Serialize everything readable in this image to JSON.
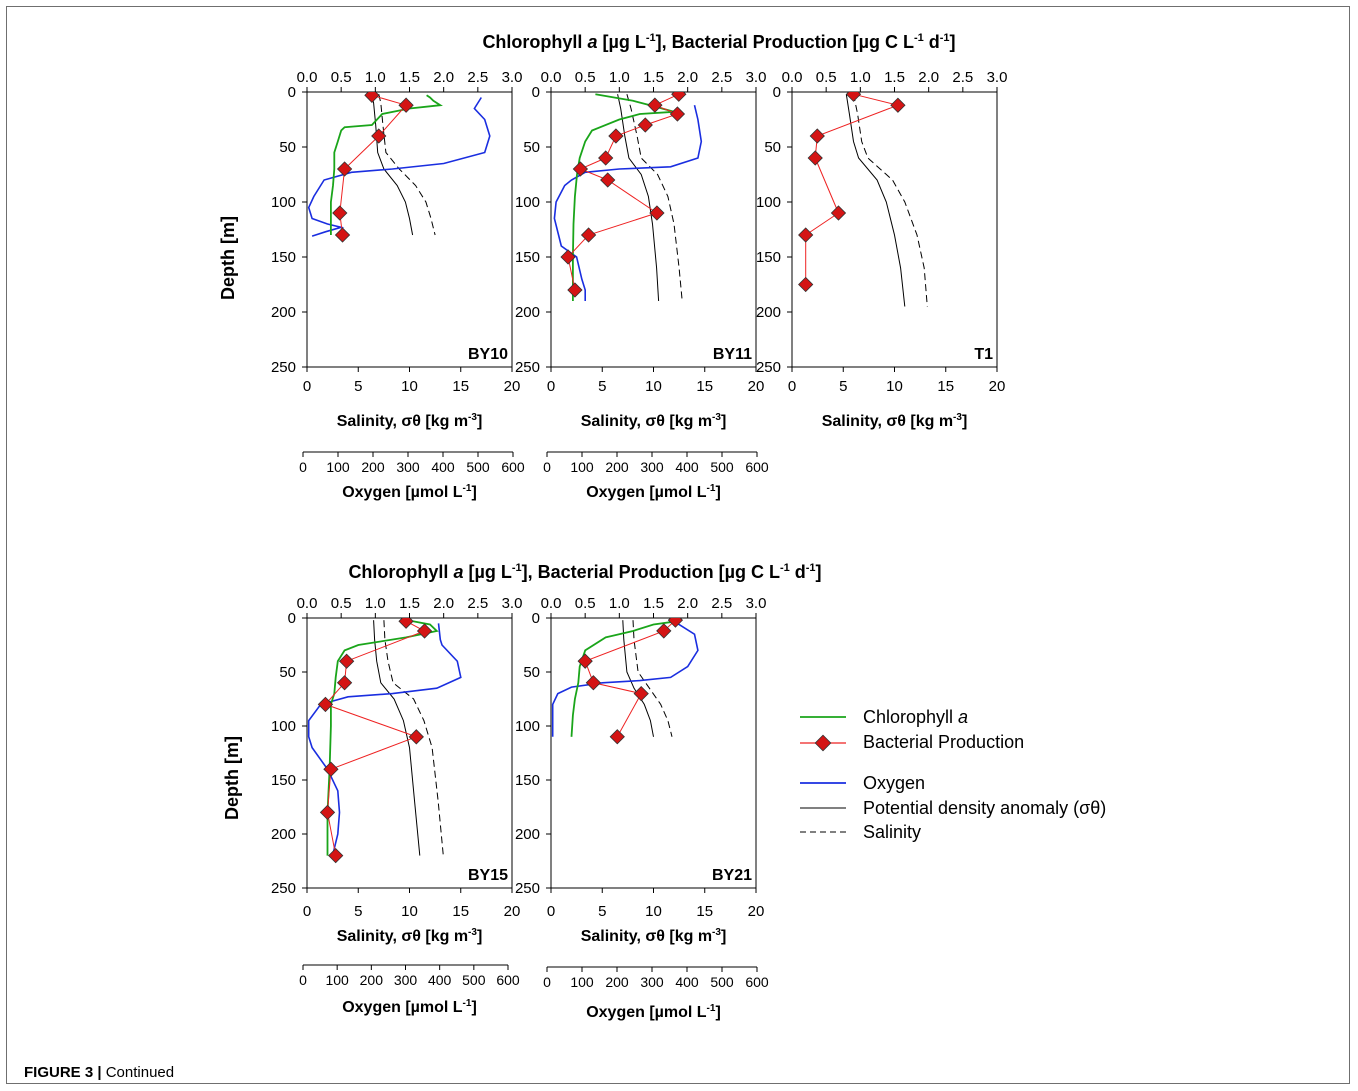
{
  "caption": {
    "label": "FIGURE 3 |",
    "text": "Continued"
  },
  "top_axis_title": {
    "part1": "Chlorophyll ",
    "part2": "a",
    "part3": " [µg L",
    "sup1": "-1",
    "part4": "], Bacterial Production [µg C L",
    "sup2": "-1",
    "part5": " d",
    "sup3": "-1",
    "part6": "]"
  },
  "labels": {
    "depth": "Depth [m]",
    "salinity": "Salinity, σθ [kg m",
    "salinity_sup": "-3",
    "salinity_end": "]",
    "oxygen": "Oxygen [µmol L",
    "oxygen_sup": "-1",
    "oxygen_end": "]"
  },
  "legend": {
    "chl": "Chlorophyll ",
    "chl_italic": "a",
    "bp": "Bacterial Production",
    "oxygen": "Oxygen",
    "density": "Potential density anomaly (σθ)",
    "salinity": "Salinity"
  },
  "colors": {
    "chlorophyll": "#1aa51a",
    "bacterial": "#ee2222",
    "marker": "#d41414",
    "oxygen": "#1a2ee0",
    "density": "#000000"
  },
  "chart_data": [
    {
      "type": "line",
      "station": "BY10",
      "top_axis": {
        "range": [
          0,
          3
        ],
        "ticks": [
          "0.0",
          "0.5",
          "1.0",
          "1.5",
          "2.0",
          "2.5",
          "3.0"
        ]
      },
      "bottom_axis": {
        "range": [
          0,
          20
        ],
        "ticks": [
          "0",
          "5",
          "10",
          "15",
          "20"
        ]
      },
      "oxygen_axis": {
        "range": [
          0,
          600
        ],
        "ticks": [
          "0",
          "100",
          "200",
          "300",
          "400",
          "500",
          "600"
        ]
      },
      "ylim": [
        0,
        250
      ],
      "yticks": [
        "0",
        "50",
        "100",
        "150",
        "200",
        "250"
      ],
      "chlorophyll": [
        [
          1.75,
          3
        ],
        [
          1.8,
          5
        ],
        [
          1.85,
          8
        ],
        [
          1.95,
          12
        ],
        [
          1.5,
          15
        ],
        [
          1.1,
          20
        ],
        [
          0.95,
          30
        ],
        [
          0.55,
          32
        ],
        [
          0.5,
          35
        ],
        [
          0.45,
          45
        ],
        [
          0.4,
          55
        ],
        [
          0.4,
          70
        ],
        [
          0.38,
          85
        ],
        [
          0.35,
          100
        ],
        [
          0.35,
          115
        ],
        [
          0.35,
          130
        ]
      ],
      "bacterial": [
        [
          0.95,
          3
        ],
        [
          1.45,
          12
        ],
        [
          1.05,
          40
        ],
        [
          0.55,
          70
        ],
        [
          0.48,
          110
        ],
        [
          0.52,
          130
        ]
      ],
      "oxygen": [
        [
          510,
          5
        ],
        [
          490,
          15
        ],
        [
          520,
          25
        ],
        [
          535,
          40
        ],
        [
          520,
          55
        ],
        [
          400,
          65
        ],
        [
          250,
          70
        ],
        [
          130,
          73
        ],
        [
          50,
          80
        ],
        [
          20,
          95
        ],
        [
          5,
          105
        ],
        [
          15,
          115
        ],
        [
          60,
          120
        ],
        [
          100,
          123
        ],
        [
          55,
          127
        ],
        [
          15,
          131
        ]
      ],
      "density": [
        [
          6.3,
          2
        ],
        [
          6.5,
          10
        ],
        [
          6.7,
          30
        ],
        [
          6.9,
          55
        ],
        [
          7.5,
          70
        ],
        [
          8.8,
          85
        ],
        [
          9.6,
          100
        ],
        [
          10.0,
          115
        ],
        [
          10.3,
          130
        ]
      ],
      "salinity": [
        [
          7.0,
          2
        ],
        [
          7.2,
          10
        ],
        [
          7.4,
          30
        ],
        [
          7.7,
          55
        ],
        [
          9.0,
          70
        ],
        [
          10.6,
          85
        ],
        [
          11.6,
          100
        ],
        [
          12.1,
          115
        ],
        [
          12.5,
          130
        ]
      ]
    },
    {
      "type": "line",
      "station": "BY11",
      "top_axis": {
        "range": [
          0,
          3
        ],
        "ticks": [
          "0.0",
          "0.5",
          "1.0",
          "1.5",
          "2.0",
          "2.5",
          "3.0"
        ]
      },
      "bottom_axis": {
        "range": [
          0,
          20
        ],
        "ticks": [
          "0",
          "5",
          "10",
          "15",
          "20"
        ]
      },
      "oxygen_axis": {
        "range": [
          0,
          600
        ],
        "ticks": [
          "0",
          "100",
          "200",
          "300",
          "400",
          "500",
          "600"
        ]
      },
      "ylim": [
        0,
        250
      ],
      "yticks": [
        "0",
        "50",
        "100",
        "150",
        "200",
        "250"
      ],
      "chlorophyll": [
        [
          0.65,
          2
        ],
        [
          1.2,
          8
        ],
        [
          1.45,
          12
        ],
        [
          1.8,
          18
        ],
        [
          1.3,
          20
        ],
        [
          1.0,
          25
        ],
        [
          0.6,
          35
        ],
        [
          0.5,
          45
        ],
        [
          0.42,
          60
        ],
        [
          0.38,
          75
        ],
        [
          0.35,
          95
        ],
        [
          0.33,
          120
        ],
        [
          0.32,
          150
        ],
        [
          0.32,
          190
        ]
      ],
      "bacterial": [
        [
          1.87,
          2
        ],
        [
          1.52,
          12
        ],
        [
          1.85,
          20
        ],
        [
          1.38,
          30
        ],
        [
          0.95,
          40
        ],
        [
          0.8,
          60
        ],
        [
          0.43,
          70
        ],
        [
          0.83,
          80
        ],
        [
          1.55,
          110
        ],
        [
          0.55,
          130
        ],
        [
          0.25,
          150
        ],
        [
          0.35,
          180
        ]
      ],
      "oxygen": [
        [
          420,
          12
        ],
        [
          430,
          25
        ],
        [
          440,
          45
        ],
        [
          430,
          60
        ],
        [
          350,
          68
        ],
        [
          200,
          70
        ],
        [
          100,
          73
        ],
        [
          60,
          80
        ],
        [
          40,
          85
        ],
        [
          15,
          100
        ],
        [
          10,
          115
        ],
        [
          30,
          140
        ],
        [
          75,
          150
        ],
        [
          90,
          170
        ],
        [
          100,
          180
        ],
        [
          100,
          190
        ]
      ],
      "density": [
        [
          6.5,
          2
        ],
        [
          6.8,
          15
        ],
        [
          7.2,
          40
        ],
        [
          7.6,
          60
        ],
        [
          8.8,
          75
        ],
        [
          9.5,
          95
        ],
        [
          9.9,
          120
        ],
        [
          10.3,
          160
        ],
        [
          10.5,
          190
        ]
      ],
      "salinity": [
        [
          7.4,
          2
        ],
        [
          7.8,
          15
        ],
        [
          8.4,
          40
        ],
        [
          8.8,
          60
        ],
        [
          10.4,
          75
        ],
        [
          11.4,
          95
        ],
        [
          12.0,
          120
        ],
        [
          12.5,
          160
        ],
        [
          12.8,
          190
        ]
      ]
    },
    {
      "type": "line",
      "station": "T1",
      "top_axis": {
        "range": [
          0,
          3
        ],
        "ticks": [
          "0.0",
          "0.5",
          "1.0",
          "1.5",
          "2.0",
          "2.5",
          "3.0"
        ]
      },
      "bottom_axis": {
        "range": [
          0,
          20
        ],
        "ticks": [
          "0",
          "5",
          "10",
          "15",
          "20"
        ]
      },
      "ylim": [
        0,
        250
      ],
      "yticks": [
        "0",
        "50",
        "100",
        "150",
        "200",
        "250"
      ],
      "chlorophyll": [],
      "bacterial": [
        [
          0.9,
          2
        ],
        [
          1.55,
          12
        ],
        [
          0.37,
          40
        ],
        [
          0.34,
          60
        ],
        [
          0.68,
          110
        ],
        [
          0.2,
          130
        ],
        [
          0.2,
          175
        ]
      ],
      "oxygen": [],
      "density": [
        [
          5.3,
          2
        ],
        [
          5.6,
          20
        ],
        [
          6.0,
          45
        ],
        [
          6.5,
          60
        ],
        [
          8.3,
          80
        ],
        [
          9.2,
          100
        ],
        [
          10.0,
          130
        ],
        [
          10.6,
          160
        ],
        [
          11.0,
          195
        ]
      ],
      "salinity": [
        [
          6.0,
          2
        ],
        [
          6.4,
          20
        ],
        [
          6.8,
          45
        ],
        [
          7.4,
          60
        ],
        [
          9.8,
          80
        ],
        [
          11.0,
          100
        ],
        [
          12.2,
          130
        ],
        [
          12.9,
          160
        ],
        [
          13.2,
          195
        ]
      ]
    },
    {
      "type": "line",
      "station": "BY15",
      "top_axis": {
        "range": [
          0,
          3
        ],
        "ticks": [
          "0.0",
          "0.5",
          "1.0",
          "1.5",
          "2.0",
          "2.5",
          "3.0"
        ]
      },
      "bottom_axis": {
        "range": [
          0,
          20
        ],
        "ticks": [
          "0",
          "5",
          "10",
          "15",
          "20"
        ]
      },
      "oxygen_axis": {
        "range": [
          0,
          600
        ],
        "ticks": [
          "0",
          "100",
          "200",
          "300",
          "400",
          "500",
          "600"
        ]
      },
      "ylim": [
        0,
        250
      ],
      "yticks": [
        "0",
        "50",
        "100",
        "150",
        "200",
        "250"
      ],
      "chlorophyll": [
        [
          1.55,
          3
        ],
        [
          1.8,
          6
        ],
        [
          1.9,
          12
        ],
        [
          1.45,
          18
        ],
        [
          0.75,
          25
        ],
        [
          0.55,
          30
        ],
        [
          0.45,
          40
        ],
        [
          0.42,
          55
        ],
        [
          0.4,
          70
        ],
        [
          0.35,
          80
        ],
        [
          0.35,
          100
        ],
        [
          0.33,
          140
        ],
        [
          0.3,
          180
        ],
        [
          0.3,
          220
        ]
      ],
      "bacterial": [
        [
          1.45,
          3
        ],
        [
          1.72,
          12
        ],
        [
          0.58,
          40
        ],
        [
          0.55,
          60
        ],
        [
          0.27,
          80
        ],
        [
          1.6,
          110
        ],
        [
          0.35,
          140
        ],
        [
          0.3,
          180
        ],
        [
          0.42,
          220
        ]
      ],
      "oxygen": [
        [
          385,
          5
        ],
        [
          390,
          20
        ],
        [
          395,
          25
        ],
        [
          440,
          40
        ],
        [
          450,
          55
        ],
        [
          380,
          65
        ],
        [
          250,
          70
        ],
        [
          120,
          73
        ],
        [
          40,
          80
        ],
        [
          5,
          95
        ],
        [
          5,
          110
        ],
        [
          15,
          120
        ],
        [
          60,
          140
        ],
        [
          90,
          160
        ],
        [
          95,
          180
        ],
        [
          90,
          200
        ],
        [
          75,
          220
        ]
      ],
      "density": [
        [
          6.5,
          2
        ],
        [
          6.6,
          20
        ],
        [
          6.8,
          40
        ],
        [
          7.2,
          60
        ],
        [
          8.5,
          75
        ],
        [
          9.4,
          95
        ],
        [
          10.0,
          120
        ],
        [
          10.5,
          170
        ],
        [
          11.0,
          220
        ]
      ],
      "salinity": [
        [
          7.5,
          2
        ],
        [
          7.6,
          20
        ],
        [
          7.9,
          40
        ],
        [
          8.4,
          60
        ],
        [
          10.4,
          75
        ],
        [
          11.4,
          95
        ],
        [
          12.2,
          120
        ],
        [
          12.8,
          170
        ],
        [
          13.3,
          220
        ]
      ]
    },
    {
      "type": "line",
      "station": "BY21",
      "top_axis": {
        "range": [
          0,
          3
        ],
        "ticks": [
          "0.0",
          "0.5",
          "1.0",
          "1.5",
          "2.0",
          "2.5",
          "3.0"
        ]
      },
      "bottom_axis": {
        "range": [
          0,
          20
        ],
        "ticks": [
          "0",
          "5",
          "10",
          "15",
          "20"
        ]
      },
      "oxygen_axis": {
        "range": [
          0,
          600
        ],
        "ticks": [
          "0",
          "100",
          "200",
          "300",
          "400",
          "500",
          "600"
        ]
      },
      "ylim": [
        0,
        250
      ],
      "yticks": [
        "0",
        "50",
        "100",
        "150",
        "200",
        "250"
      ],
      "chlorophyll": [
        [
          1.85,
          3
        ],
        [
          1.5,
          6
        ],
        [
          1.2,
          12
        ],
        [
          0.8,
          18
        ],
        [
          0.5,
          30
        ],
        [
          0.42,
          45
        ],
        [
          0.4,
          60
        ],
        [
          0.35,
          75
        ],
        [
          0.32,
          90
        ],
        [
          0.3,
          110
        ]
      ],
      "bacterial": [
        [
          1.82,
          2
        ],
        [
          1.65,
          12
        ],
        [
          0.5,
          40
        ],
        [
          0.62,
          60
        ],
        [
          1.32,
          70
        ],
        [
          0.97,
          110
        ]
      ],
      "oxygen": [
        [
          370,
          5
        ],
        [
          420,
          15
        ],
        [
          430,
          30
        ],
        [
          400,
          45
        ],
        [
          350,
          55
        ],
        [
          260,
          58
        ],
        [
          150,
          60
        ],
        [
          60,
          64
        ],
        [
          20,
          70
        ],
        [
          5,
          80
        ],
        [
          5,
          110
        ]
      ],
      "density": [
        [
          7.0,
          2
        ],
        [
          7.1,
          20
        ],
        [
          7.4,
          50
        ],
        [
          8.1,
          65
        ],
        [
          9.1,
          80
        ],
        [
          9.7,
          95
        ],
        [
          10.0,
          110
        ]
      ],
      "salinity": [
        [
          8.0,
          2
        ],
        [
          8.1,
          20
        ],
        [
          8.5,
          50
        ],
        [
          9.6,
          65
        ],
        [
          10.7,
          80
        ],
        [
          11.4,
          95
        ],
        [
          11.8,
          110
        ]
      ]
    }
  ]
}
